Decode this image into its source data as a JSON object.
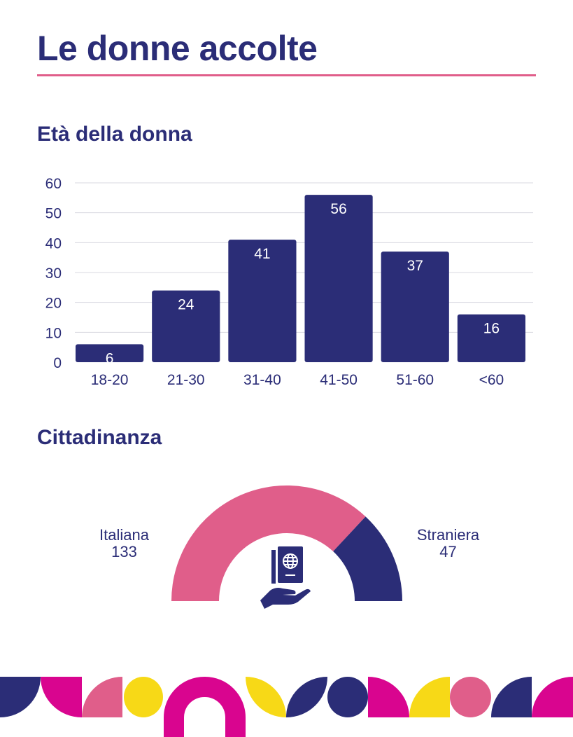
{
  "title": "Le donne accolte",
  "colors": {
    "navy": "#2b2d77",
    "pink": "#e05e8a",
    "magenta": "#d9058f",
    "yellow": "#f7d917"
  },
  "chart_data": [
    {
      "type": "bar",
      "title": "Età della donna",
      "categories": [
        "18-20",
        "21-30",
        "31-40",
        "41-50",
        "51-60",
        "<60"
      ],
      "values": [
        6,
        24,
        41,
        56,
        37,
        16
      ],
      "ylim": [
        0,
        60
      ],
      "yticks": [
        0,
        10,
        20,
        30,
        40,
        50,
        60
      ],
      "grid": true,
      "xlabel": "",
      "ylabel": ""
    },
    {
      "type": "pie",
      "subtype": "half-donut",
      "title": "Cittadinanza",
      "categories": [
        "Italiana",
        "Straniera"
      ],
      "values": [
        133,
        47
      ],
      "icon": "passport-in-hand-icon"
    }
  ]
}
